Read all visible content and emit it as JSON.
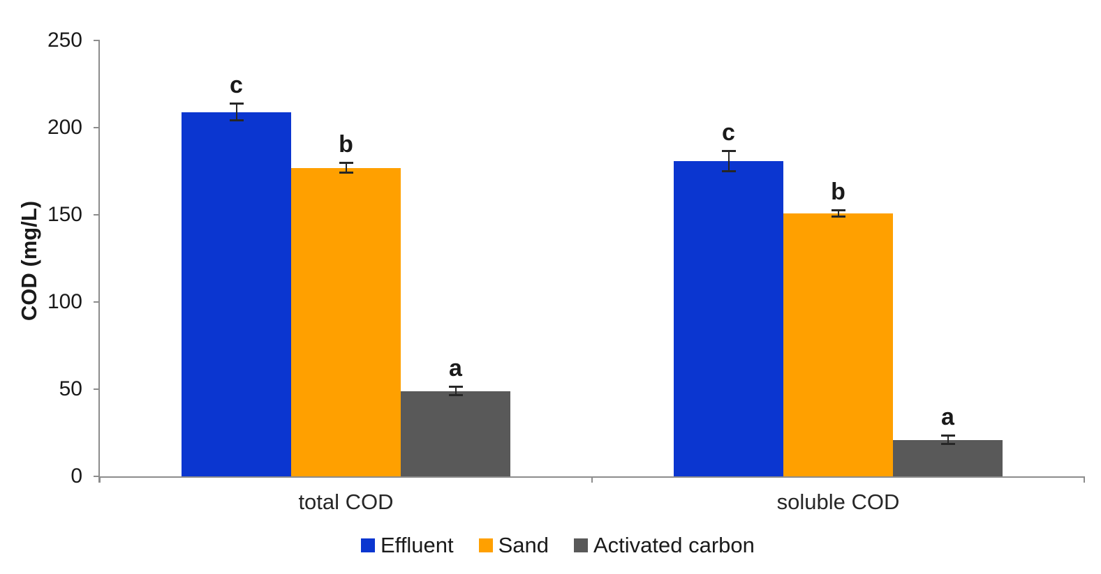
{
  "chart_data": {
    "type": "bar",
    "title": "",
    "xlabel": "",
    "ylabel": "COD (mg/L)",
    "ylim": [
      0,
      250
    ],
    "yticks": [
      0,
      50,
      100,
      150,
      200,
      250
    ],
    "categories": [
      "total COD",
      "soluble COD"
    ],
    "series": [
      {
        "name": "Effluent",
        "color": "#0B36D0",
        "values": [
          209,
          181
        ],
        "errors": [
          5,
          6
        ],
        "letters": [
          "c",
          "c"
        ]
      },
      {
        "name": "Sand",
        "color": "#FFA000",
        "values": [
          177,
          151
        ],
        "errors": [
          3,
          2
        ],
        "letters": [
          "b",
          "b"
        ]
      },
      {
        "name": "Activated carbon",
        "color": "#595959",
        "values": [
          49,
          21
        ],
        "errors": [
          2.5,
          2.5
        ],
        "letters": [
          "a",
          "a"
        ]
      }
    ],
    "grid": false,
    "legend_position": "bottom",
    "axis_color": "#8C8C8C",
    "error_bar_color": "#262626",
    "text_color": "#1a1a1a",
    "background_color": "#ffffff"
  }
}
